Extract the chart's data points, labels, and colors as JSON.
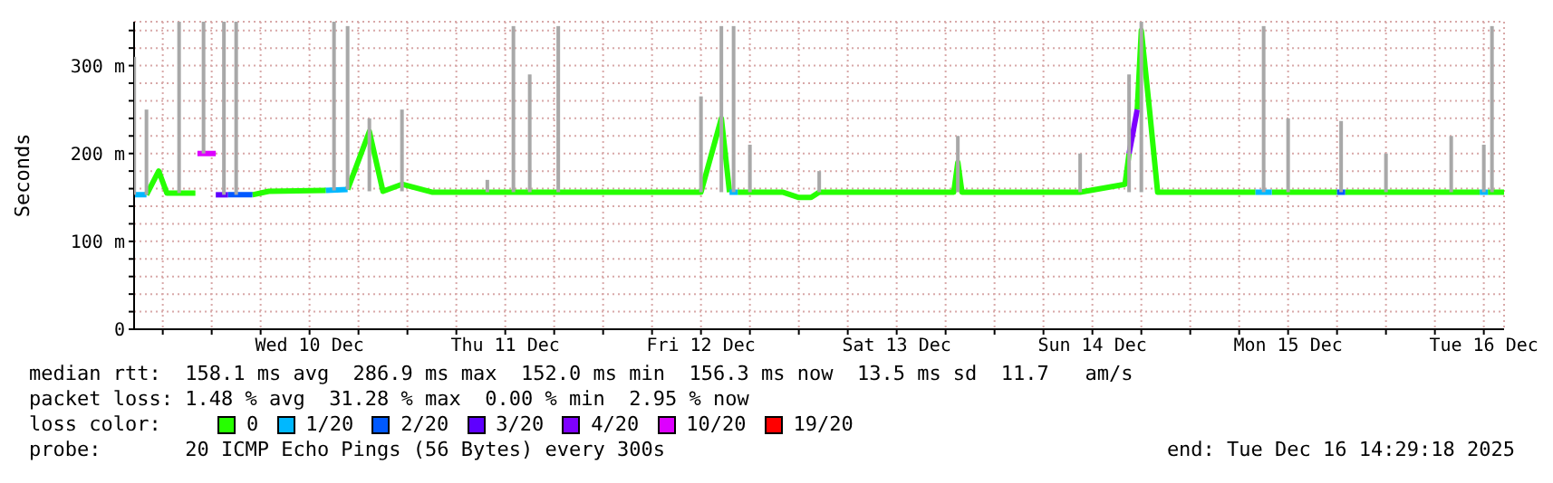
{
  "chart_data": {
    "type": "line",
    "ylabel": "Seconds",
    "legend_title": "loss color:",
    "legend": "bottom",
    "grid": true,
    "xlim": [
      "2025-12-09T14:29",
      "2025-12-16T14:29"
    ],
    "xticks": [
      {
        "value": "2025-12-09T18:00",
        "label": null
      },
      {
        "value": "2025-12-10T00:00",
        "label": null
      },
      {
        "value": "2025-12-10T06:00",
        "label": null
      },
      {
        "value": "2025-12-10T12:00",
        "label": "Wed 10 Dec"
      },
      {
        "value": "2025-12-10T18:00",
        "label": null
      },
      {
        "value": "2025-12-11T00:00",
        "label": null
      },
      {
        "value": "2025-12-11T06:00",
        "label": null
      },
      {
        "value": "2025-12-11T12:00",
        "label": "Thu 11 Dec"
      },
      {
        "value": "2025-12-11T18:00",
        "label": null
      },
      {
        "value": "2025-12-12T00:00",
        "label": null
      },
      {
        "value": "2025-12-12T06:00",
        "label": null
      },
      {
        "value": "2025-12-12T12:00",
        "label": "Fri 12 Dec"
      },
      {
        "value": "2025-12-12T18:00",
        "label": null
      },
      {
        "value": "2025-12-13T00:00",
        "label": null
      },
      {
        "value": "2025-12-13T06:00",
        "label": null
      },
      {
        "value": "2025-12-13T12:00",
        "label": "Sat 13 Dec"
      },
      {
        "value": "2025-12-13T18:00",
        "label": null
      },
      {
        "value": "2025-12-14T00:00",
        "label": null
      },
      {
        "value": "2025-12-14T06:00",
        "label": null
      },
      {
        "value": "2025-12-14T12:00",
        "label": "Sun 14 Dec"
      },
      {
        "value": "2025-12-14T18:00",
        "label": null
      },
      {
        "value": "2025-12-15T00:00",
        "label": null
      },
      {
        "value": "2025-12-15T06:00",
        "label": null
      },
      {
        "value": "2025-12-15T12:00",
        "label": "Mon 15 Dec"
      },
      {
        "value": "2025-12-15T18:00",
        "label": null
      },
      {
        "value": "2025-12-16T00:00",
        "label": null
      },
      {
        "value": "2025-12-16T06:00",
        "label": null
      },
      {
        "value": "2025-12-16T12:00",
        "label": "Tue 16 Dec"
      }
    ],
    "ylim": [
      0,
      350
    ],
    "yticks": [
      0,
      {
        "value": 20,
        "label": null
      },
      {
        "value": 40,
        "label": null
      },
      {
        "value": 60,
        "label": null
      },
      {
        "value": 80,
        "label": null
      },
      {
        "value": 100,
        "label": "100 m"
      },
      {
        "value": 120,
        "label": null
      },
      {
        "value": 140,
        "label": null
      },
      {
        "value": 160,
        "label": null
      },
      {
        "value": 180,
        "label": null
      },
      {
        "value": 200,
        "label": "200 m"
      },
      {
        "value": 220,
        "label": null
      },
      {
        "value": 240,
        "label": null
      },
      {
        "value": 260,
        "label": null
      },
      {
        "value": 280,
        "label": null
      },
      {
        "value": 300,
        "label": "300 m"
      },
      {
        "value": 320,
        "label": null
      },
      {
        "value": 340,
        "label": null
      }
    ],
    "series": [
      {
        "type": "bar",
        "color": "#a8a8a8",
        "x": [
          "2025-12-09T14:30",
          "2025-12-09T16:00",
          "2025-12-09T20:00",
          "2025-12-09T23:00",
          "2025-12-10T01:30",
          "2025-12-10T03:00",
          "2025-12-10T15:00",
          "2025-12-10T16:40",
          "2025-12-10T19:20",
          "2025-12-10T23:20",
          "2025-12-11T09:48",
          "2025-12-11T13:00",
          "2025-12-11T15:00",
          "2025-12-11T18:30",
          "2025-12-12T12:00",
          "2025-12-12T14:30",
          "2025-12-12T16:00",
          "2025-12-12T18:00",
          "2025-12-13T02:30",
          "2025-12-13T19:30",
          "2025-12-14T10:30",
          "2025-12-14T16:30",
          "2025-12-14T18:00",
          "2025-12-15T09:00",
          "2025-12-15T12:00",
          "2025-12-15T18:30",
          "2025-12-16T00:00",
          "2025-12-16T08:00",
          "2025-12-16T12:00",
          "2025-12-16T13:00"
        ],
        "base": [
          153,
          153,
          155,
          200,
          153,
          153,
          158,
          159,
          157,
          157,
          156,
          156,
          156,
          156,
          156,
          156,
          156,
          156,
          156,
          156,
          156,
          156,
          156,
          156,
          156,
          156,
          156,
          156,
          156,
          156
        ],
        "values": [
          157,
          97,
          195,
          150,
          197,
          197,
          192,
          186,
          83,
          93,
          14,
          189,
          134,
          189,
          109,
          189,
          189,
          54,
          24,
          64,
          44,
          134,
          194,
          189,
          84,
          81,
          44,
          64,
          54,
          189
        ]
      },
      {
        "name": "0",
        "color": "#26ff00",
        "x": [
          "2025-12-09T16:00",
          "2025-12-09T17:30",
          "2025-12-09T18:30",
          "2025-12-09T21:30",
          "2025-12-09T22:00",
          "2025-12-10T02:00",
          "2025-12-10T05:00",
          "2025-12-10T07:00",
          "2025-12-10T14:00",
          "2025-12-10T15:00",
          "2025-12-10T16:40",
          "2025-12-10T19:20",
          "2025-12-10T21:00",
          "2025-12-10T23:20",
          "2025-12-11T03:00",
          "2025-12-11T09:48",
          "2025-12-11T13:00",
          "2025-12-11T18:30",
          "2025-12-12T06:00",
          "2025-12-12T12:00",
          "2025-12-12T14:30",
          "2025-12-12T15:30",
          "2025-12-12T16:00",
          "2025-12-12T16:30",
          "2025-12-12T22:00",
          "2025-12-13T00:00",
          "2025-12-13T01:30",
          "2025-12-13T02:30",
          "2025-12-13T19:00",
          "2025-12-13T19:30",
          "2025-12-13T20:00",
          "2025-12-14T10:30",
          "2025-12-14T16:00",
          "2025-12-14T16:30",
          "2025-12-14T17:00",
          "2025-12-14T17:15",
          "2025-12-14T17:30",
          "2025-12-14T18:00",
          "2025-12-14T19:00",
          "2025-12-14T20:00",
          "2025-12-15T08:00",
          "2025-12-15T09:00",
          "2025-12-15T10:00",
          "2025-12-15T18:00",
          "2025-12-15T18:30",
          "2025-12-15T19:00",
          "2025-12-16T11:30",
          "2025-12-16T12:00",
          "2025-12-16T12:30",
          "2025-12-16T14:29"
        ],
        "values": [
          153,
          180,
          155,
          155,
          155,
          null,
          153,
          157,
          158,
          null,
          159,
          225,
          157,
          165,
          156,
          156,
          156,
          156,
          156,
          156,
          240,
          156,
          null,
          156,
          156,
          150,
          150,
          156,
          156,
          190,
          156,
          156,
          165,
          200,
          null,
          null,
          250,
          340,
          250,
          156,
          156,
          null,
          156,
          156,
          null,
          156,
          156,
          null,
          156,
          156
        ]
      },
      {
        "name": "1/20",
        "color": "#00b8ff",
        "x": [
          "2025-12-09T14:30",
          "2025-12-09T16:00",
          "2025-12-10T10:00",
          "2025-12-10T14:00",
          "2025-12-10T16:40",
          "2025-12-11T12:00",
          "2025-12-12T15:30",
          "2025-12-12T16:30",
          "2025-12-14T12:00",
          "2025-12-15T08:00",
          "2025-12-15T10:00",
          "2025-12-15T20:00",
          "2025-12-16T11:30",
          "2025-12-16T12:30"
        ],
        "values": [
          153,
          153,
          null,
          158,
          159,
          null,
          156,
          156,
          null,
          156,
          156,
          null,
          156,
          156
        ]
      },
      {
        "name": "2/20",
        "color": "#0059ff",
        "x": [
          "2025-12-10T02:00",
          "2025-12-10T05:00",
          "2025-12-12T12:00",
          "2025-12-15T18:00",
          "2025-12-15T19:00"
        ],
        "values": [
          153,
          153,
          null,
          156,
          156
        ]
      },
      {
        "name": "3/20",
        "color": "#5e00ff",
        "x": [
          "2025-12-10T00:30",
          "2025-12-10T02:00"
        ],
        "values": [
          153,
          153
        ]
      },
      {
        "name": "4/20",
        "color": "#7e00ff",
        "x": [
          "2025-12-14T16:30",
          "2025-12-14T17:30"
        ],
        "values": [
          200,
          250
        ]
      },
      {
        "name": "10/20",
        "color": "#dd00ff",
        "x": [
          "2025-12-09T22:15",
          "2025-12-10T00:30"
        ],
        "values": [
          200,
          200
        ]
      },
      {
        "name": "19/20",
        "color": "#ff0000"
      }
    ],
    "annotations": [
      "median rtt:  158.1 ms avg  286.9 ms max  152.0 ms min  156.3 ms now  13.5 ms sd  11.7   am/s",
      "packet loss: 1.48 % avg  31.28 % max  0.00 % min  2.95 % now",
      "probe:       20 ICMP Echo Pings (56 Bytes) every 300s",
      "end: Tue Dec 16 14:29:18 2025"
    ]
  }
}
